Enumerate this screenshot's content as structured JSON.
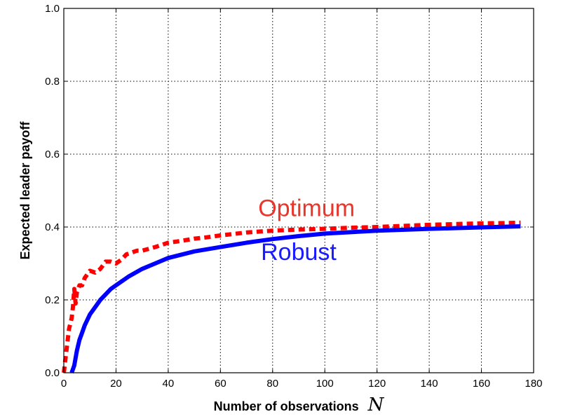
{
  "chart_data": {
    "type": "line",
    "title": "",
    "xlabel": "Number of observations",
    "xlabel_var": "N",
    "ylabel": "Expected leader payoff",
    "xlim": [
      0,
      180
    ],
    "ylim": [
      0,
      1.0
    ],
    "xticks": [
      "0",
      "20",
      "40",
      "60",
      "80",
      "100",
      "120",
      "140",
      "160",
      "180"
    ],
    "yticks": [
      "0.0",
      "0.2",
      "0.4",
      "0.6",
      "0.8",
      "1.0"
    ],
    "grid": true,
    "grid_style": "dotted",
    "legend": "none",
    "series": [
      {
        "name": "Optimum",
        "color": "#ff0000",
        "style": "dashed",
        "x": [
          0,
          1,
          2,
          3,
          3.5,
          4,
          4.5,
          5,
          6,
          7,
          8,
          9,
          10,
          12,
          14,
          16,
          18,
          20,
          22,
          24,
          26,
          28,
          30,
          35,
          40,
          45,
          50,
          55,
          60,
          70,
          80,
          90,
          100,
          110,
          120,
          130,
          140,
          150,
          160,
          170,
          175
        ],
        "y": [
          0.0,
          0.06,
          0.12,
          0.15,
          0.18,
          0.23,
          0.19,
          0.22,
          0.24,
          0.24,
          0.26,
          0.27,
          0.28,
          0.275,
          0.285,
          0.305,
          0.305,
          0.3,
          0.31,
          0.325,
          0.33,
          0.335,
          0.335,
          0.345,
          0.357,
          0.362,
          0.368,
          0.372,
          0.377,
          0.385,
          0.39,
          0.393,
          0.395,
          0.398,
          0.4,
          0.403,
          0.406,
          0.408,
          0.41,
          0.411,
          0.412
        ]
      },
      {
        "name": "Robust",
        "color": "#0000ff",
        "style": "solid",
        "x": [
          3,
          4,
          5,
          6,
          7,
          8,
          9,
          10,
          12,
          14,
          16,
          18,
          20,
          25,
          30,
          35,
          40,
          50,
          60,
          70,
          80,
          90,
          100,
          120,
          140,
          160,
          175
        ],
        "y": [
          0.0,
          0.02,
          0.06,
          0.09,
          0.11,
          0.13,
          0.145,
          0.16,
          0.18,
          0.2,
          0.215,
          0.23,
          0.24,
          0.265,
          0.285,
          0.3,
          0.315,
          0.333,
          0.345,
          0.357,
          0.367,
          0.375,
          0.382,
          0.39,
          0.395,
          0.399,
          0.402
        ]
      }
    ],
    "annotations": [
      {
        "text": "Optimum",
        "color": "#e8362b",
        "x": 93,
        "y": 0.43
      },
      {
        "text": "Robust",
        "color": "#1a1aff",
        "x": 90,
        "y": 0.31
      }
    ]
  }
}
